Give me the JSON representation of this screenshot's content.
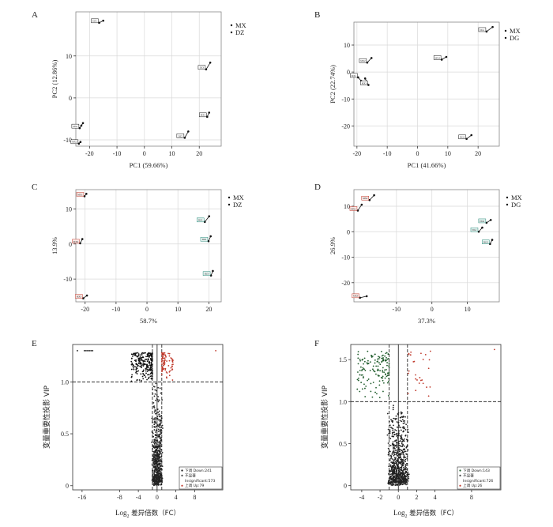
{
  "chart_data": [
    {
      "panel": "A",
      "type": "scatter",
      "xlabel": "PC1 (59.66%)",
      "ylabel": "PC2 (12.86%)",
      "xlim": [
        -25,
        28
      ],
      "ylim": [
        -11.5,
        20.5
      ],
      "xticks": [
        -20,
        -10,
        0,
        10,
        20
      ],
      "yticks": [
        -10,
        0,
        10
      ],
      "grid": true,
      "legend_position": "right",
      "series": [
        {
          "name": "MX",
          "points": [
            [
              -23.6,
              -7.2
            ],
            [
              -22.4,
              -6.0
            ],
            [
              -23.0,
              -6.6
            ]
          ]
        },
        {
          "name": "DZ",
          "points": [
            [
              -16.5,
              17.9
            ],
            [
              -15.0,
              18.4
            ],
            [
              -23.9,
              -10.9
            ],
            [
              -23.3,
              -10.5
            ],
            [
              14.7,
              -9.5
            ],
            [
              16.0,
              -8.0
            ],
            [
              22.5,
              6.8
            ],
            [
              24.0,
              8.4
            ],
            [
              22.9,
              -4.5
            ],
            [
              23.6,
              -3.5
            ]
          ]
        }
      ],
      "point_labels": [
        "MX1",
        "DZ1",
        "MX2",
        "DZ2",
        "DZ3",
        "MX3",
        "DZ4"
      ]
    },
    {
      "panel": "B",
      "type": "scatter",
      "xlabel": "PC1 (41.66%)",
      "ylabel": "PC2 (22.74%)",
      "xlim": [
        -21,
        27
      ],
      "ylim": [
        -27.5,
        18.5
      ],
      "xticks": [
        -20,
        -10,
        0,
        10,
        20
      ],
      "yticks": [
        -20,
        -10,
        0,
        10
      ],
      "grid": true,
      "legend_position": "right",
      "series": [
        {
          "name": "MX",
          "points": [
            [
              -19.6,
              -2.0
            ],
            [
              -18.6,
              -3.3
            ],
            [
              -16.6,
              3.5
            ],
            [
              -15.2,
              5.2
            ],
            [
              -16.2,
              -4.8
            ],
            [
              -17.3,
              -2.4
            ]
          ]
        },
        {
          "name": "DG",
          "points": [
            [
              8.0,
              4.6
            ],
            [
              9.5,
              5.6
            ],
            [
              22.8,
              15.0
            ],
            [
              24.8,
              16.7
            ],
            [
              16.2,
              -24.8
            ],
            [
              17.8,
              -23.4
            ]
          ]
        }
      ],
      "point_labels": [
        "MX1",
        "MX2",
        "MX3",
        "MX4",
        "DG1",
        "DG2",
        "DG3"
      ]
    },
    {
      "panel": "C",
      "type": "scatter",
      "xlabel": "58.7%",
      "ylabel": "13.9%",
      "xlim": [
        -23,
        24
      ],
      "ylim": [
        -16.5,
        15.5
      ],
      "xticks": [
        -20,
        -10,
        0,
        10,
        20
      ],
      "yticks": [
        -10,
        0,
        10
      ],
      "grid": true,
      "legend_position": "right",
      "series": [
        {
          "name": "MX",
          "points": [
            [
              -20.2,
              13.6
            ],
            [
              -19.6,
              14.3
            ],
            [
              -21.6,
              0.2
            ],
            [
              -20.9,
              1.4
            ],
            [
              -20.6,
              -15.5
            ],
            [
              -19.4,
              -14.7
            ]
          ]
        },
        {
          "name": "DZ",
          "points": [
            [
              18.7,
              6.3
            ],
            [
              20.1,
              7.9
            ],
            [
              19.9,
              0.8
            ],
            [
              20.6,
              2.2
            ],
            [
              20.7,
              -9.0
            ],
            [
              21.3,
              -7.7
            ]
          ]
        }
      ],
      "point_labels": [
        "MX1",
        "MX2",
        "MX3",
        "DZ1",
        "DZ2",
        "DZ3"
      ]
    },
    {
      "panel": "D",
      "type": "scatter",
      "xlabel": "37.3%",
      "ylabel": "26.9%",
      "xlim": [
        -22,
        19
      ],
      "ylim": [
        -27.5,
        16.5
      ],
      "xticks": [
        -10,
        0,
        10
      ],
      "yticks": [
        -20,
        -10,
        0,
        10
      ],
      "grid": true,
      "legend_position": "right",
      "series": [
        {
          "name": "MX",
          "points": [
            [
              -20.9,
              8.3
            ],
            [
              -19.8,
              10.6
            ],
            [
              -17.6,
              12.4
            ],
            [
              -16.3,
              14.3
            ],
            [
              -20.3,
              -25.9
            ],
            [
              -18.4,
              -25.3
            ]
          ]
        },
        {
          "name": "DG",
          "points": [
            [
              13.2,
              0.0
            ],
            [
              14.2,
              1.6
            ],
            [
              15.4,
              3.5
            ],
            [
              16.6,
              4.6
            ],
            [
              16.4,
              -4.8
            ],
            [
              17.0,
              -3.2
            ]
          ]
        }
      ],
      "point_labels": [
        "MX1",
        "MX2",
        "MX3",
        "DG1",
        "DG2",
        "DG3"
      ]
    },
    {
      "panel": "E",
      "type": "scatter",
      "xlabel_main": "Log",
      "xlabel_sub": "2",
      "xlabel_rest": " 差异倍数（FC）",
      "ylabel": "变量重要性投影 VIP",
      "xlim": [
        -18,
        14
      ],
      "ylim": [
        -0.04,
        1.36
      ],
      "xticks": [
        -16,
        -8,
        -4,
        0,
        4,
        8
      ],
      "yticks": [
        0,
        0.5,
        1.0
      ],
      "vlines": [
        -1,
        0,
        1
      ],
      "hline": 1.0,
      "legend_position": "bottom-right",
      "legend": [
        {
          "label": "下调 Down:241",
          "color": "#111111"
        },
        {
          "label": "不显著",
          "color": "#444444"
        },
        {
          "label": "Insignificant:573",
          "color": "#444444"
        },
        {
          "label": "上调 Up:79",
          "color": "#c0392b"
        }
      ],
      "counts": {
        "down": 241,
        "insignificant": 573,
        "up": 79
      }
    },
    {
      "panel": "F",
      "type": "scatter",
      "xlabel_main": "Log",
      "xlabel_sub": "2",
      "xlabel_rest": " 差异倍数（FC）",
      "ylabel": "变量重要性投影 VIP",
      "xlim": [
        -5.2,
        11.2
      ],
      "ylim": [
        -0.05,
        1.68
      ],
      "xticks": [
        -4,
        -2,
        0,
        2,
        4,
        8
      ],
      "yticks": [
        0,
        0.5,
        1.0,
        1.5
      ],
      "vlines": [
        -1,
        0,
        1
      ],
      "hline": 1.0,
      "legend_position": "bottom-right",
      "legend": [
        {
          "label": "下调 Down:143",
          "color": "#1f5c2b"
        },
        {
          "label": "不显著",
          "color": "#444444"
        },
        {
          "label": "Insignificant:726",
          "color": "#444444"
        },
        {
          "label": "上调 Up:26",
          "color": "#c0392b"
        }
      ],
      "counts": {
        "down": 143,
        "insignificant": 726,
        "up": 26
      }
    }
  ],
  "colors": {
    "grid": "#d9d9d9",
    "axis": "#333333",
    "red_label": "#c0392b",
    "teal_label": "#2a8a7a",
    "down_E": "#111111",
    "down_F": "#1f5c2b",
    "up": "#c0392b",
    "insig": "#222222"
  }
}
